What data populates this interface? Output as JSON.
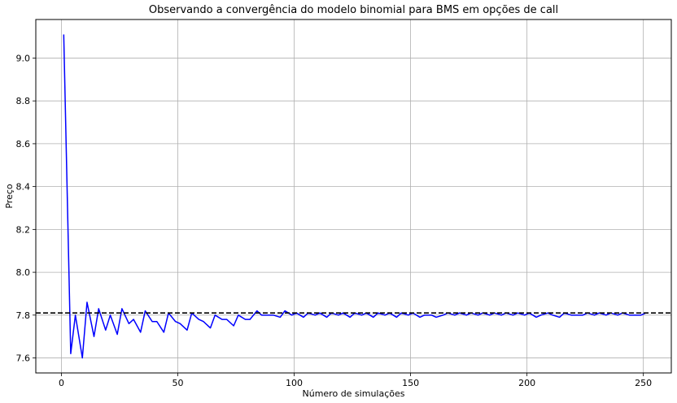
{
  "chart_data": {
    "type": "line",
    "title": "Observando a convergência do modelo binomial para BMS em opções de call",
    "xlabel": "Número de simulações",
    "ylabel": "Preço",
    "xlim": [
      -11,
      262
    ],
    "ylim": [
      7.53,
      9.18
    ],
    "xticks": [
      0,
      50,
      100,
      150,
      200,
      250
    ],
    "yticks": [
      7.6,
      7.8,
      8.0,
      8.2,
      8.4,
      8.6,
      8.8,
      9.0
    ],
    "xtick_labels": [
      "0",
      "50",
      "100",
      "150",
      "200",
      "250"
    ],
    "ytick_labels": [
      "7.6",
      "7.8",
      "8.0",
      "8.2",
      "8.4",
      "8.6",
      "8.8",
      "9.0"
    ],
    "grid": true,
    "series": [
      {
        "color": "#0000ff",
        "style": "solid",
        "x": [
          1,
          4,
          6,
          9,
          11,
          14,
          16,
          19,
          21,
          24,
          26,
          29,
          31,
          34,
          36,
          39,
          41,
          44,
          46,
          49,
          51,
          54,
          56,
          59,
          61,
          64,
          66,
          69,
          71,
          74,
          76,
          79,
          81,
          84,
          86,
          89,
          91,
          94,
          96,
          99,
          101,
          104,
          106,
          109,
          111,
          114,
          116,
          119,
          121,
          124,
          126,
          129,
          131,
          134,
          136,
          139,
          141,
          144,
          146,
          149,
          151,
          154,
          156,
          159,
          161,
          164,
          166,
          169,
          171,
          174,
          176,
          179,
          181,
          184,
          186,
          189,
          191,
          194,
          196,
          199,
          201,
          204,
          206,
          209,
          211,
          214,
          216,
          219,
          221,
          224,
          226,
          229,
          231,
          234,
          236,
          239,
          241,
          244,
          246,
          249,
          251
        ],
        "y": [
          9.11,
          7.62,
          7.8,
          7.6,
          7.86,
          7.7,
          7.83,
          7.73,
          7.8,
          7.71,
          7.83,
          7.76,
          7.78,
          7.72,
          7.82,
          7.77,
          7.77,
          7.72,
          7.81,
          7.77,
          7.76,
          7.73,
          7.81,
          7.78,
          7.77,
          7.74,
          7.8,
          7.78,
          7.78,
          7.75,
          7.8,
          7.78,
          7.78,
          7.82,
          7.8,
          7.8,
          7.8,
          7.79,
          7.82,
          7.8,
          7.81,
          7.79,
          7.81,
          7.8,
          7.81,
          7.79,
          7.81,
          7.8,
          7.81,
          7.79,
          7.81,
          7.8,
          7.81,
          7.79,
          7.81,
          7.8,
          7.81,
          7.79,
          7.81,
          7.8,
          7.81,
          7.79,
          7.8,
          7.8,
          7.79,
          7.8,
          7.81,
          7.8,
          7.81,
          7.8,
          7.81,
          7.8,
          7.81,
          7.8,
          7.81,
          7.8,
          7.81,
          7.8,
          7.81,
          7.8,
          7.81,
          7.79,
          7.8,
          7.81,
          7.8,
          7.79,
          7.81,
          7.8,
          7.8,
          7.8,
          7.81,
          7.8,
          7.81,
          7.8,
          7.81,
          7.8,
          7.81,
          7.8,
          7.8,
          7.8,
          7.81
        ]
      },
      {
        "color": "#000000",
        "style": "dashed",
        "y_constant": 7.81
      }
    ]
  }
}
